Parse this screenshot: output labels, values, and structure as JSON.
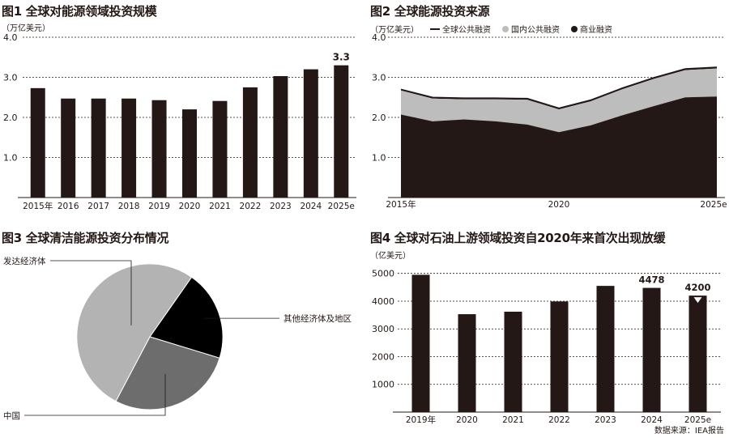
{
  "fig1": {
    "title": "图1 全球对能源领域投资规模",
    "unit": "（万亿美元）",
    "chart_data": {
      "type": "bar",
      "categories": [
        "2015年",
        "2016",
        "2017",
        "2018",
        "2019",
        "2020",
        "2021",
        "2022",
        "2023",
        "2024",
        "2025e"
      ],
      "values": [
        2.73,
        2.47,
        2.47,
        2.47,
        2.43,
        2.2,
        2.41,
        2.75,
        3.03,
        3.2,
        3.3
      ],
      "data_labels": {
        "last": "3.3"
      },
      "yticks": [
        "1.0",
        "2.0",
        "3.0",
        "4.0"
      ],
      "ylim": [
        0,
        4.0
      ],
      "grid": "dashed horizontal",
      "bar_color": "#231815"
    }
  },
  "fig2": {
    "title": "图2 全球能源投资来源",
    "unit": "（万亿美元）",
    "legend": [
      {
        "label": "全球公共融资",
        "marker": "line",
        "color": "#231815"
      },
      {
        "label": "国内公共融资",
        "marker": "dot",
        "color": "#bdbdbd"
      },
      {
        "label": "商业融资",
        "marker": "dot",
        "color": "#231815"
      }
    ],
    "chart_data": {
      "type": "area",
      "x": [
        2015,
        2016,
        2017,
        2018,
        2019,
        2020,
        2021,
        2022,
        2023,
        2024,
        2025
      ],
      "xticks": [
        "2015年",
        "2020",
        "2025e"
      ],
      "series": [
        {
          "name": "商业融资",
          "values": [
            2.07,
            1.9,
            1.95,
            1.9,
            1.82,
            1.63,
            1.8,
            2.05,
            2.28,
            2.5,
            2.52
          ],
          "color": "#231815"
        },
        {
          "name": "国内公共融资",
          "values": [
            0.6,
            0.57,
            0.5,
            0.55,
            0.62,
            0.57,
            0.6,
            0.65,
            0.68,
            0.68,
            0.7
          ],
          "color": "#bdbdbd"
        },
        {
          "name": "全球公共融资",
          "values": [
            0.03,
            0.03,
            0.03,
            0.03,
            0.03,
            0.03,
            0.03,
            0.03,
            0.03,
            0.03,
            0.03
          ],
          "color": "#231815"
        }
      ],
      "yticks": [
        "1.0",
        "2.0",
        "3.0",
        "4.0"
      ],
      "ylim": [
        0,
        4.0
      ],
      "grid": "dashed horizontal"
    }
  },
  "fig3": {
    "title": "图3 全球清洁能源投资分布情况",
    "chart_data": {
      "type": "pie",
      "slices": [
        {
          "label": "其他经济体及地区",
          "value": 20,
          "color": "#000000"
        },
        {
          "label": "中国",
          "value": 28,
          "color": "#6d6d6d"
        },
        {
          "label": "发达经济体",
          "value": 52,
          "color": "#b3b3b3"
        }
      ],
      "start_angle_deg": 35
    }
  },
  "fig4": {
    "title": "图4 全球对石油上游领域投资自2020年来首次出现放缓",
    "unit": "（亿美元）",
    "chart_data": {
      "type": "bar",
      "categories": [
        "2019年",
        "2020",
        "2021",
        "2022",
        "2023",
        "2024",
        "2025e"
      ],
      "values": [
        4950,
        3530,
        3620,
        3990,
        4550,
        4478,
        4200
      ],
      "data_labels": {
        "2024": "4478",
        "2025e": "4200"
      },
      "yticks": [
        "1000",
        "2000",
        "3000",
        "4000",
        "5000"
      ],
      "ylim": [
        0,
        5400
      ],
      "grid": "dashed horizontal",
      "bar_color": "#231815",
      "down_marker_on": "2025e"
    }
  },
  "source": "数据来源：IEA报告"
}
